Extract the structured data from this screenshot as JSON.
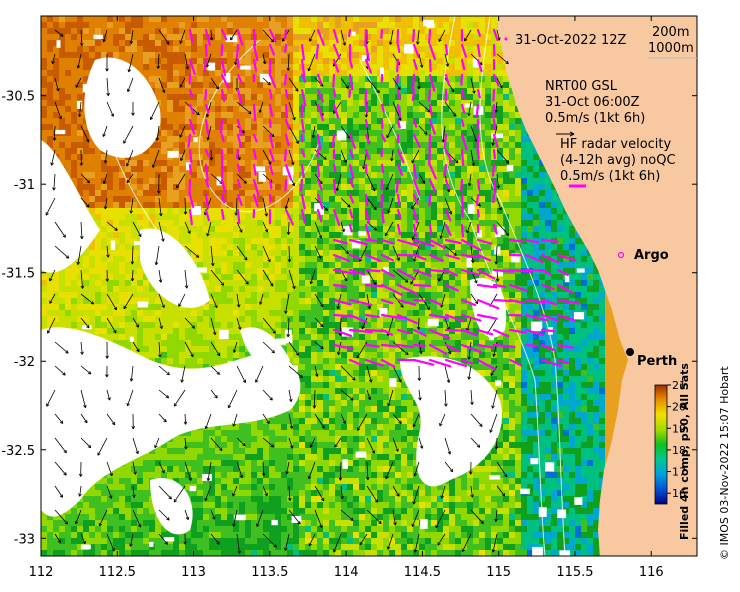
{
  "map": {
    "x_ticks": [
      "112",
      "112.5",
      "113",
      "113.5",
      "114",
      "114.5",
      "115",
      "115.5",
      "116"
    ],
    "y_ticks": [
      "-30.5",
      "-31",
      "-31.5",
      "-32",
      "-32.5",
      "-33"
    ],
    "x_range": [
      112,
      116.3
    ],
    "y_range": [
      -33.1,
      -30.05
    ],
    "colors": {
      "land": "#f8c9a0",
      "radar": "#ff00ff",
      "gap": "#ffffff"
    }
  },
  "annotations": {
    "date": "31-Oct-2022 12Z",
    "isobath_1": "200m",
    "isobath_2": "1000m",
    "gsl_line1": "NRT00 GSL",
    "gsl_line2": "31-Oct 06:00Z",
    "gsl_line3": "0.5m/s (1kt 6h)",
    "radar_line1": "HF radar velocity",
    "radar_line2": "(4-12h avg) noQC",
    "radar_line3": "0.5m/s (1kt 6h)",
    "argo": "Argo",
    "city": "Perth"
  },
  "colorbar": {
    "ticks": [
      "21",
      "20",
      "19",
      "18",
      "17",
      "16"
    ],
    "range": [
      15.5,
      21
    ],
    "label": "Filled 4h comp, p50, All Sats"
  },
  "credit": "© IMOS 03-Nov-2022 15:07 Hobart"
}
